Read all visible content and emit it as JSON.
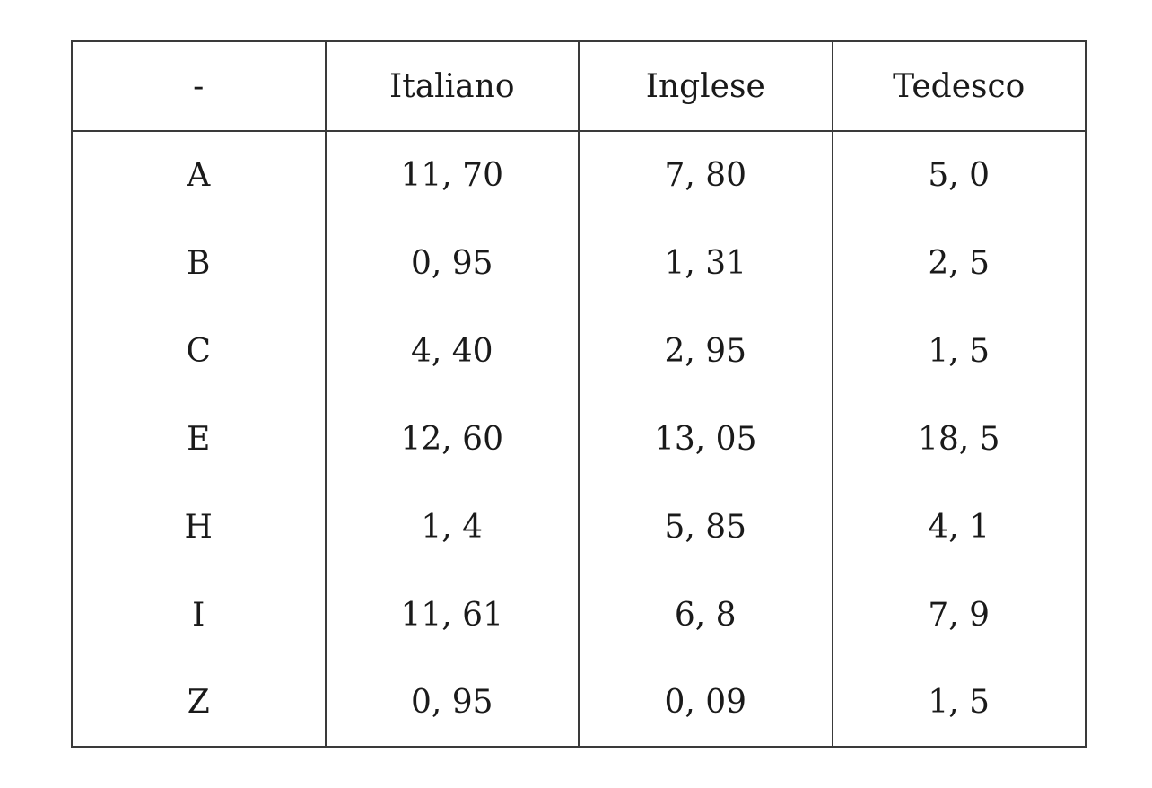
{
  "table": {
    "headers": [
      "-",
      "Italiano",
      "Inglese",
      "Tedesco"
    ],
    "rows": [
      {
        "letter": "A",
        "values": [
          "11, 70",
          "7, 80",
          "5, 0"
        ]
      },
      {
        "letter": "B",
        "values": [
          "0, 95",
          "1, 31",
          "2, 5"
        ]
      },
      {
        "letter": "C",
        "values": [
          "4, 40",
          "2, 95",
          "1, 5"
        ]
      },
      {
        "letter": "E",
        "values": [
          "12, 60",
          "13, 05",
          "18, 5"
        ]
      },
      {
        "letter": "H",
        "values": [
          "1, 4",
          "5, 85",
          "4, 1"
        ]
      },
      {
        "letter": "I",
        "values": [
          "11, 61",
          "6, 8",
          "7, 9"
        ]
      },
      {
        "letter": "Z",
        "values": [
          "0, 95",
          "0, 09",
          "1, 5"
        ]
      }
    ]
  }
}
